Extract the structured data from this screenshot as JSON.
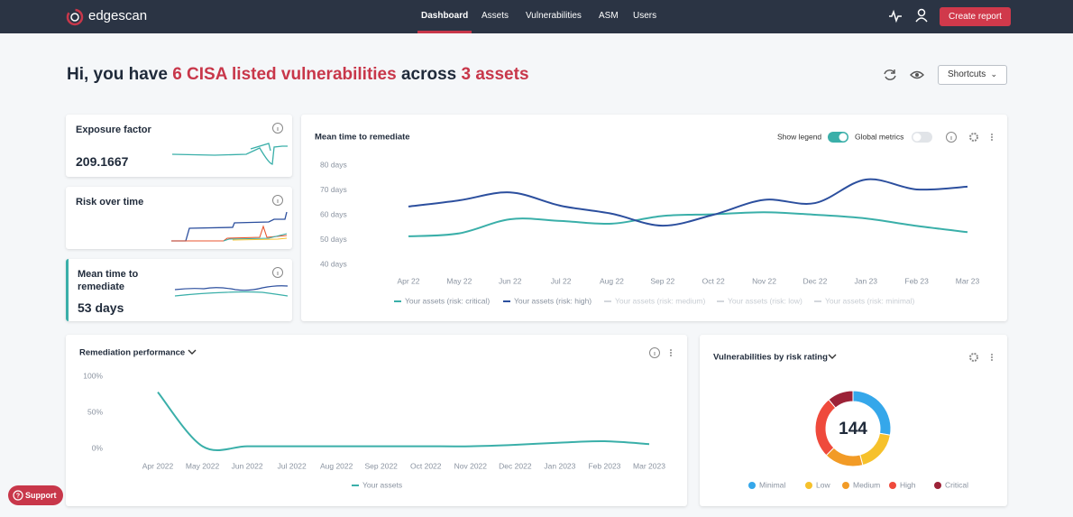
{
  "nav": {
    "logo": "edgescan",
    "items": [
      "Dashboard",
      "Assets",
      "Vulnerabilities",
      "ASM",
      "Users"
    ],
    "active_index": 0,
    "button": "Create report"
  },
  "header": {
    "greeting": [
      "Hi, you have ",
      "6 CISA listed vulnerabilities",
      " across ",
      "3 assets"
    ],
    "shortcuts": "Shortcuts"
  },
  "cards": [
    {
      "title": "Exposure factor",
      "value": "209.1667"
    },
    {
      "title": "Risk over time"
    },
    {
      "title": "Mean time to remediate",
      "value": "53 days"
    }
  ],
  "chart_data": [
    {
      "type": "line",
      "title": "Mean time to remediate",
      "controls": {
        "show_legend": {
          "label": "Show legend",
          "on": true
        },
        "global_metrics": {
          "label": "Global metrics",
          "on": false
        }
      },
      "categories": [
        "Apr 22",
        "May 22",
        "Jun 22",
        "Jul 22",
        "Aug 22",
        "Sep 22",
        "Oct 22",
        "Nov 22",
        "Dec 22",
        "Jan 23",
        "Feb 23",
        "Mar 23"
      ],
      "series": [
        {
          "name": "Your assets (risk: critical)",
          "color": "#3aafa9",
          "values": [
            51.3,
            52.5,
            58.2,
            57.5,
            56.4,
            59.5,
            60.2,
            61,
            60,
            58.5,
            55.5,
            53
          ]
        },
        {
          "name": "Your assets (risk: high)",
          "color": "#2c4f9e",
          "values": [
            63.3,
            65.8,
            69,
            63.6,
            60.4,
            55.6,
            60,
            66,
            64.7,
            74.2,
            70.2,
            71.3
          ]
        },
        {
          "name": "Your assets (risk: medium)",
          "color": "#d3d7dc",
          "values": [
            null,
            null,
            null,
            null,
            null,
            null,
            null,
            null,
            null,
            null,
            null,
            null
          ]
        },
        {
          "name": "Your assets (risk: low)",
          "color": "#d3d7dc",
          "values": [
            null,
            null,
            null,
            null,
            null,
            null,
            null,
            null,
            null,
            null,
            null,
            null
          ]
        },
        {
          "name": "Your assets (risk: minimal)",
          "color": "#d3d7dc",
          "values": [
            null,
            null,
            null,
            null,
            null,
            null,
            null,
            null,
            null,
            null,
            null,
            null
          ]
        }
      ],
      "ylim": [
        40,
        80
      ],
      "yticks": [
        {
          "value": 40,
          "label": "40 days"
        },
        {
          "value": 50,
          "label": "50 days"
        },
        {
          "value": 60,
          "label": "60 days"
        },
        {
          "value": 70,
          "label": "70 days"
        },
        {
          "value": 80,
          "label": "80 days"
        }
      ]
    },
    {
      "type": "line",
      "title": "Remediation performance",
      "categories": [
        "Apr 2022",
        "May 2022",
        "Jun 2022",
        "Jul 2022",
        "Aug 2022",
        "Sep 2022",
        "Oct 2022",
        "Nov 2022",
        "Dec 2022",
        "Jan 2023",
        "Feb 2023",
        "Mar 2023"
      ],
      "series": [
        {
          "name": "Your assets",
          "color": "#3aafa9",
          "values": [
            78,
            3,
            3,
            3,
            3,
            3,
            3,
            3,
            5,
            8,
            10,
            6
          ]
        }
      ],
      "ylim": [
        0,
        100
      ],
      "yticks": [
        {
          "value": 0,
          "label": "0%"
        },
        {
          "value": 50,
          "label": "50%"
        },
        {
          "value": 100,
          "label": "100%"
        }
      ]
    },
    {
      "type": "donut",
      "title": "Vulnerabilities by risk rating",
      "center_label": 144,
      "categories": [
        "Minimal",
        "Low",
        "Medium",
        "High",
        "Critical"
      ],
      "values": [
        40,
        26,
        24,
        38,
        16
      ],
      "colors": [
        "#35a7ea",
        "#f6c12b",
        "#f29b26",
        "#ef4a3c",
        "#9c2237"
      ]
    }
  ],
  "support": "Support"
}
